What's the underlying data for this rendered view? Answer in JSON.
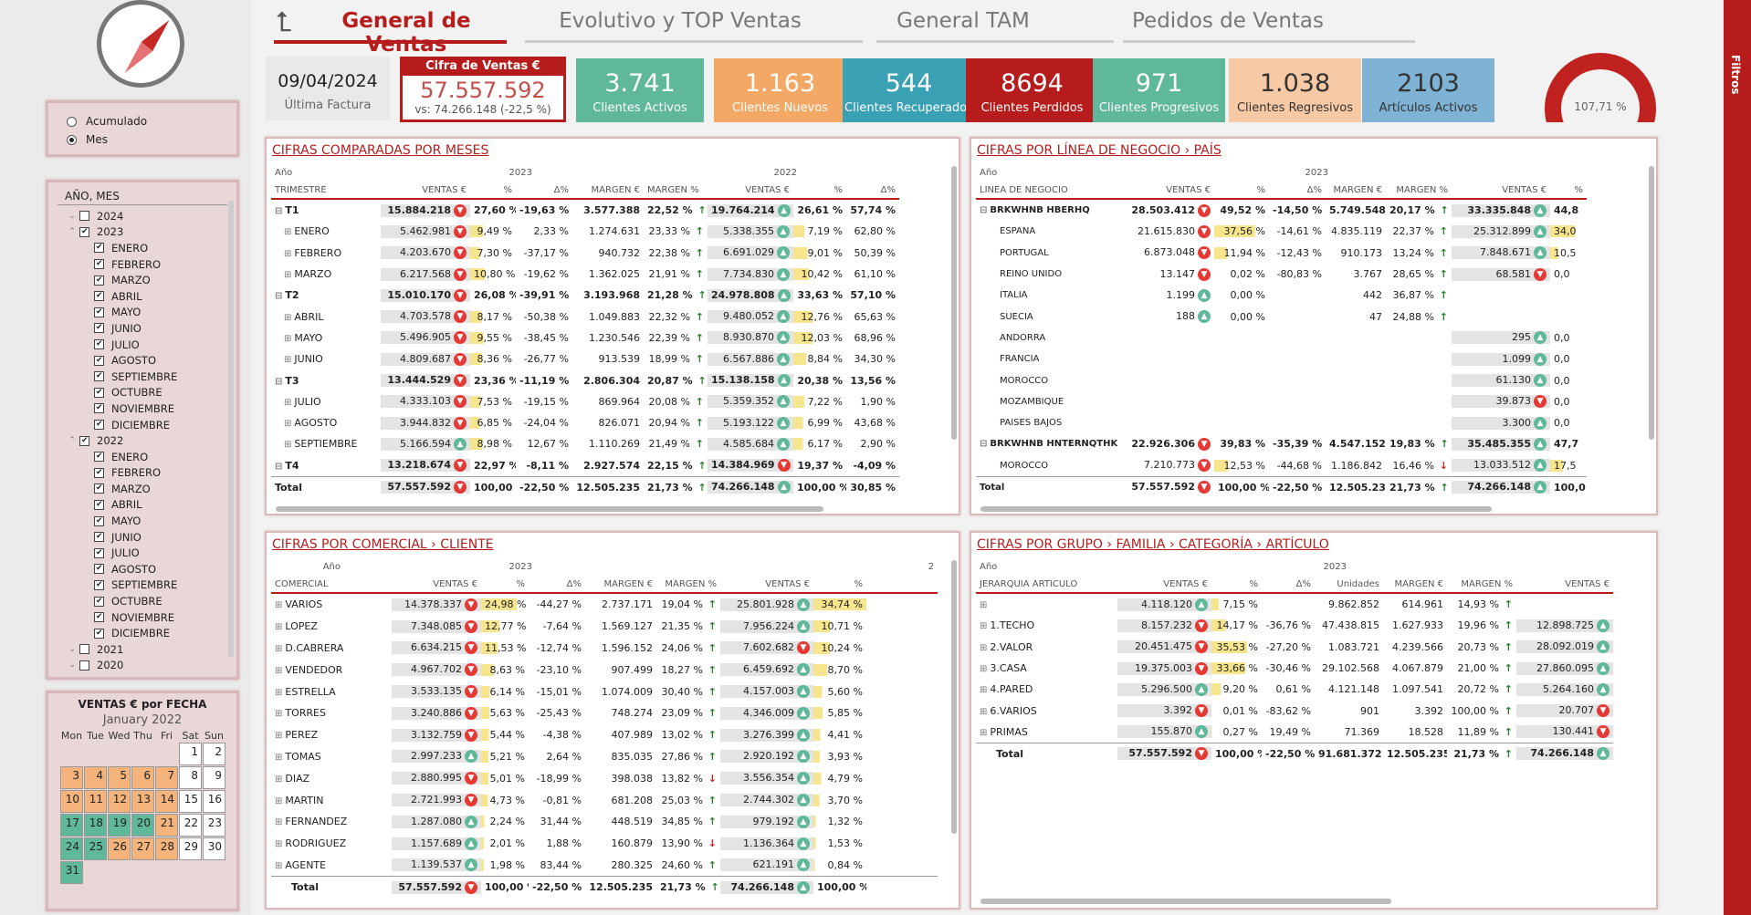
{
  "sidebar": {
    "mode_options": [
      {
        "label": "Acumulado",
        "selected": false
      },
      {
        "label": "Mes",
        "selected": true
      }
    ],
    "date_filter": {
      "header": "AÑO, MES",
      "items": [
        {
          "label": "2024",
          "level": 0,
          "checked": false,
          "expanded": false
        },
        {
          "label": "2023",
          "level": 0,
          "checked": true,
          "expanded": true
        },
        {
          "label": "ENERO",
          "level": 1,
          "checked": true
        },
        {
          "label": "FEBRERO",
          "level": 1,
          "checked": true
        },
        {
          "label": "MARZO",
          "level": 1,
          "checked": true
        },
        {
          "label": "ABRIL",
          "level": 1,
          "checked": true
        },
        {
          "label": "MAYO",
          "level": 1,
          "checked": true
        },
        {
          "label": "JUNIO",
          "level": 1,
          "checked": true
        },
        {
          "label": "JULIO",
          "level": 1,
          "checked": true
        },
        {
          "label": "AGOSTO",
          "level": 1,
          "checked": true
        },
        {
          "label": "SEPTIEMBRE",
          "level": 1,
          "checked": true
        },
        {
          "label": "OCTUBRE",
          "level": 1,
          "checked": true
        },
        {
          "label": "NOVIEMBRE",
          "level": 1,
          "checked": true
        },
        {
          "label": "DICIEMBRE",
          "level": 1,
          "checked": true
        },
        {
          "label": "2022",
          "level": 0,
          "checked": true,
          "expanded": true
        },
        {
          "label": "ENERO",
          "level": 1,
          "checked": true
        },
        {
          "label": "FEBRERO",
          "level": 1,
          "checked": true
        },
        {
          "label": "MARZO",
          "level": 1,
          "checked": true
        },
        {
          "label": "ABRIL",
          "level": 1,
          "checked": true
        },
        {
          "label": "MAYO",
          "level": 1,
          "checked": true
        },
        {
          "label": "JUNIO",
          "level": 1,
          "checked": true
        },
        {
          "label": "JULIO",
          "level": 1,
          "checked": true
        },
        {
          "label": "AGOSTO",
          "level": 1,
          "checked": true
        },
        {
          "label": "SEPTIEMBRE",
          "level": 1,
          "checked": true
        },
        {
          "label": "OCTUBRE",
          "level": 1,
          "checked": true
        },
        {
          "label": "NOVIEMBRE",
          "level": 1,
          "checked": true
        },
        {
          "label": "DICIEMBRE",
          "level": 1,
          "checked": true
        },
        {
          "label": "2021",
          "level": 0,
          "checked": false,
          "expanded": false
        },
        {
          "label": "2020",
          "level": 0,
          "checked": false,
          "expanded": false
        }
      ]
    },
    "calendar": {
      "title": "VENTAS € por FECHA",
      "month": "January 2022",
      "weekdays": [
        "Mon",
        "Tue",
        "Wed",
        "Thu",
        "Fri",
        "Sat",
        "Sun"
      ],
      "days": [
        {
          "d": "",
          "c": "e"
        },
        {
          "d": "",
          "c": "e"
        },
        {
          "d": "",
          "c": "e"
        },
        {
          "d": "",
          "c": "e"
        },
        {
          "d": "",
          "c": "e"
        },
        {
          "d": "1",
          "c": ""
        },
        {
          "d": "2",
          "c": ""
        },
        {
          "d": "3",
          "c": "o"
        },
        {
          "d": "4",
          "c": "o"
        },
        {
          "d": "5",
          "c": "o"
        },
        {
          "d": "6",
          "c": "o"
        },
        {
          "d": "7",
          "c": "o"
        },
        {
          "d": "8",
          "c": ""
        },
        {
          "d": "9",
          "c": ""
        },
        {
          "d": "10",
          "c": "o"
        },
        {
          "d": "11",
          "c": "o"
        },
        {
          "d": "12",
          "c": "o"
        },
        {
          "d": "13",
          "c": "o"
        },
        {
          "d": "14",
          "c": "o"
        },
        {
          "d": "15",
          "c": ""
        },
        {
          "d": "16",
          "c": ""
        },
        {
          "d": "17",
          "c": "g"
        },
        {
          "d": "18",
          "c": "g"
        },
        {
          "d": "19",
          "c": "g"
        },
        {
          "d": "20",
          "c": "g"
        },
        {
          "d": "21",
          "c": "o"
        },
        {
          "d": "22",
          "c": ""
        },
        {
          "d": "23",
          "c": ""
        },
        {
          "d": "24",
          "c": "g"
        },
        {
          "d": "25",
          "c": "g"
        },
        {
          "d": "26",
          "c": "o"
        },
        {
          "d": "27",
          "c": "o"
        },
        {
          "d": "28",
          "c": "o"
        },
        {
          "d": "29",
          "c": ""
        },
        {
          "d": "30",
          "c": ""
        },
        {
          "d": "31",
          "c": "g"
        }
      ]
    }
  },
  "tabs": [
    {
      "label": "General de Ventas",
      "active": true
    },
    {
      "label": "Evolutivo y TOP Ventas",
      "active": false
    },
    {
      "label": "General TAM",
      "active": false
    },
    {
      "label": "Pedidos de Ventas",
      "active": false
    }
  ],
  "kpis": {
    "date": {
      "value": "09/04/2024",
      "label": "Última Factura"
    },
    "ventas": {
      "title": "Cifra de Ventas €",
      "value": "57.557.592",
      "vs": "vs: 74.266.148 (-22,5 %)"
    },
    "cards": [
      {
        "value": "3.741",
        "label": "Clientes Activos",
        "color": "#5fb89a"
      },
      {
        "value": "1.163",
        "label": "Clientes Nuevos",
        "color": "#f3a965"
      },
      {
        "value": "544",
        "label": "Clientes Recuperados",
        "color": "#3aa1b5"
      },
      {
        "value": "8694",
        "label": "Clientes Perdidos",
        "color": "#b71c1c"
      },
      {
        "value": "971",
        "label": "Clientes Progresivos",
        "color": "#5fb89a"
      },
      {
        "value": "1.038",
        "label": "Clientes Regresivos",
        "color": "#f7c9a5",
        "textcolor": "#333"
      },
      {
        "value": "2103",
        "label": "Artículos Activos",
        "color": "#7fb3d5",
        "textcolor": "#333"
      }
    ],
    "gauge": {
      "value": "107,71 %"
    }
  },
  "filters_label": "Filtros",
  "t1": {
    "title": "CIFRAS COMPARADAS POR MESES",
    "h1": [
      "Año",
      "2023",
      "2022"
    ],
    "h2": [
      "TRIMESTRE",
      "VENTAS €",
      "%",
      "Δ%",
      "MARGEN €",
      "MARGEN %",
      "VENTAS €",
      "%",
      "Δ%"
    ],
    "rows": [
      [
        "T1",
        "15.884.218",
        "dn",
        "27,60 %",
        "-19,63 %",
        "3.577.388",
        "22,52 %",
        "up",
        "19.764.214",
        "up",
        "26,61 %",
        "57,74 %",
        "b",
        "27.6"
      ],
      [
        "ENERO",
        "5.462.981",
        "dn",
        "9,49 %",
        "2,33 %",
        "1.274.631",
        "23,33 %",
        "up",
        "5.338.355",
        "up",
        "7,19 %",
        "62,80 %",
        "",
        "9.5"
      ],
      [
        "FEBRERO",
        "4.203.670",
        "dn",
        "7,30 %",
        "-37,17 %",
        "940.732",
        "22,38 %",
        "up",
        "6.691.029",
        "up",
        "9,01 %",
        "50,39 %",
        "",
        "7.3"
      ],
      [
        "MARZO",
        "6.217.568",
        "dn",
        "10,80 %",
        "-19,62 %",
        "1.362.025",
        "21,91 %",
        "up",
        "7.734.830",
        "up",
        "10,42 %",
        "61,10 %",
        "",
        "10.8"
      ],
      [
        "T2",
        "15.010.170",
        "dn",
        "26,08 %",
        "-39,91 %",
        "3.193.968",
        "21,28 %",
        "up",
        "24.978.808",
        "up",
        "33,63 %",
        "57,10 %",
        "b",
        "26.1"
      ],
      [
        "ABRIL",
        "4.703.578",
        "dn",
        "8,17 %",
        "-50,38 %",
        "1.049.883",
        "22,32 %",
        "up",
        "9.480.052",
        "up",
        "12,76 %",
        "65,63 %",
        "",
        "8.2"
      ],
      [
        "MAYO",
        "5.496.905",
        "dn",
        "9,55 %",
        "-38,45 %",
        "1.230.546",
        "22,39 %",
        "up",
        "8.930.870",
        "up",
        "12,03 %",
        "68,96 %",
        "",
        "9.6"
      ],
      [
        "JUNIO",
        "4.809.687",
        "dn",
        "8,36 %",
        "-26,77 %",
        "913.539",
        "18,99 %",
        "up",
        "6.567.886",
        "up",
        "8,84 %",
        "34,30 %",
        "",
        "8.4"
      ],
      [
        "T3",
        "13.444.529",
        "dn",
        "23,36 %",
        "-11,19 %",
        "2.806.304",
        "20,87 %",
        "up",
        "15.138.158",
        "up",
        "20,38 %",
        "13,56 %",
        "b",
        "23.4"
      ],
      [
        "JULIO",
        "4.333.103",
        "dn",
        "7,53 %",
        "-19,15 %",
        "869.964",
        "20,08 %",
        "up",
        "5.359.352",
        "up",
        "7,22 %",
        "1,90 %",
        "",
        "7.5"
      ],
      [
        "AGOSTO",
        "3.944.832",
        "dn",
        "6,85 %",
        "-24,04 %",
        "826.071",
        "20,94 %",
        "up",
        "5.193.122",
        "up",
        "6,99 %",
        "43,68 %",
        "",
        "6.9"
      ],
      [
        "SEPTIEMBRE",
        "5.166.594",
        "up",
        "8,98 %",
        "12,67 %",
        "1.110.269",
        "21,49 %",
        "up",
        "4.585.684",
        "up",
        "6,17 %",
        "2,90 %",
        "",
        "9.0"
      ],
      [
        "T4",
        "13.218.674",
        "dn",
        "22,97 %",
        "-8,11 %",
        "2.927.574",
        "22,15 %",
        "up",
        "14.384.969",
        "dn",
        "19,37 %",
        "-4,09 %",
        "b",
        "23.0"
      ],
      [
        "Total",
        "57.557.592",
        "dn",
        "100,00 %",
        "-22,50 %",
        "12.505.235",
        "21,73 %",
        "up",
        "74.266.148",
        "up",
        "100,00 %",
        "30,85 %",
        "t",
        "0"
      ]
    ]
  },
  "t2": {
    "title": "CIFRAS POR LÍNEA DE NEGOCIO › PAÍS",
    "h1": [
      "Año",
      "2023"
    ],
    "h2": [
      "LÍNEA DE NEGOCIO",
      "VENTAS €",
      "%",
      "Δ%",
      "MARGEN €",
      "MARGEN %",
      "VENTAS €",
      "%"
    ],
    "rows": [
      [
        "BRKWHNB HBERHQ",
        "28.503.412",
        "dn",
        "49,52 %",
        "-14,50 %",
        "5.749.548",
        "20,17 %",
        "up",
        "33.335.848",
        "up",
        "44,8",
        "b"
      ],
      [
        "ESPAÑA",
        "21.615.830",
        "dn",
        "37,56 %",
        "-14,61 %",
        "4.835.119",
        "22,37 %",
        "up",
        "25.312.899",
        "up",
        "34,0",
        ""
      ],
      [
        "PORTUGAL",
        "6.873.048",
        "dn",
        "11,94 %",
        "-12,43 %",
        "910.173",
        "13,24 %",
        "up",
        "7.848.671",
        "up",
        "10,5",
        ""
      ],
      [
        "REINO UNIDO",
        "13.147",
        "dn",
        "0,02 %",
        "-80,83 %",
        "3.767",
        "28,65 %",
        "up",
        "68.581",
        "dn",
        "0,0",
        ""
      ],
      [
        "ITALIA",
        "1.199",
        "up",
        "0,00 %",
        "",
        "442",
        "36,87 %",
        "up",
        "",
        "",
        "",
        ""
      ],
      [
        "SUECIA",
        "188",
        "up",
        "0,00 %",
        "",
        "47",
        "24,88 %",
        "up",
        "",
        "",
        "",
        ""
      ],
      [
        "ANDORRA",
        "",
        "",
        "",
        "",
        "",
        "",
        "",
        "295",
        "up",
        "0,0",
        ""
      ],
      [
        "FRANCIA",
        "",
        "",
        "",
        "",
        "",
        "",
        "",
        "1.099",
        "up",
        "0,0",
        ""
      ],
      [
        "MOROCCO",
        "",
        "",
        "",
        "",
        "",
        "",
        "",
        "61.130",
        "up",
        "0,0",
        ""
      ],
      [
        "MOZAMBIQUE",
        "",
        "",
        "",
        "",
        "",
        "",
        "",
        "39.873",
        "dn",
        "0,0",
        ""
      ],
      [
        "PAÍSES BAJOS",
        "",
        "",
        "",
        "",
        "",
        "",
        "",
        "3.300",
        "up",
        "0,0",
        ""
      ],
      [
        "BRKWHNB HNTERNQTHKNQL",
        "22.926.306",
        "dn",
        "39,83 %",
        "-35,39 %",
        "4.547.152",
        "19,83 %",
        "up",
        "35.485.355",
        "up",
        "47,7",
        "b"
      ],
      [
        "MOROCCO",
        "7.210.773",
        "dn",
        "12,53 %",
        "-44,68 %",
        "1.186.842",
        "16,46 %",
        "dn",
        "13.033.512",
        "up",
        "17,5",
        ""
      ],
      [
        "Total",
        "57.557.592",
        "dn",
        "100,00 %",
        "-22,50 %",
        "12.505.235",
        "21,73 %",
        "up",
        "74.266.148",
        "up",
        "100,0",
        "t"
      ]
    ]
  },
  "t3": {
    "title": "CIFRAS POR COMERCIAL › CLIENTE",
    "h1": [
      "Año",
      "2023",
      "2"
    ],
    "h2": [
      "COMERCIAL",
      "VENTAS €",
      "%",
      "Δ%",
      "MARGEN €",
      "MARGEN %",
      "VENTAS €",
      "%"
    ],
    "rows": [
      [
        "VARIOS",
        "14.378.337",
        "dn",
        "24,98 %",
        "-44,27 %",
        "2.737.171",
        "19,04 %",
        "up",
        "25.801.928",
        "up",
        "34,74 %",
        ""
      ],
      [
        "LOPEZ",
        "7.348.085",
        "dn",
        "12,77 %",
        "-7,64 %",
        "1.569.127",
        "21,35 %",
        "up",
        "7.956.224",
        "up",
        "10,71 %",
        ""
      ],
      [
        "D.CABRERA",
        "6.634.215",
        "dn",
        "11,53 %",
        "-12,74 %",
        "1.596.152",
        "24,06 %",
        "up",
        "7.602.682",
        "dn",
        "10,24 %",
        ""
      ],
      [
        "VENDEDOR",
        "4.967.702",
        "dn",
        "8,63 %",
        "-23,10 %",
        "907.499",
        "18,27 %",
        "up",
        "6.459.692",
        "up",
        "8,70 %",
        ""
      ],
      [
        "ESTRELLA",
        "3.533.135",
        "dn",
        "6,14 %",
        "-15,01 %",
        "1.074.009",
        "30,40 %",
        "up",
        "4.157.003",
        "up",
        "5,60 %",
        ""
      ],
      [
        "TORRES",
        "3.240.886",
        "dn",
        "5,63 %",
        "-25,43 %",
        "748.274",
        "23,09 %",
        "up",
        "4.346.009",
        "up",
        "5,85 %",
        ""
      ],
      [
        "PEREZ",
        "3.132.759",
        "dn",
        "5,44 %",
        "-4,38 %",
        "407.989",
        "13,02 %",
        "up",
        "3.276.399",
        "up",
        "4,41 %",
        ""
      ],
      [
        "TOMAS",
        "2.997.233",
        "up",
        "5,21 %",
        "2,64 %",
        "835.035",
        "27,86 %",
        "up",
        "2.920.192",
        "up",
        "3,93 %",
        ""
      ],
      [
        "DIAZ",
        "2.880.995",
        "dn",
        "5,01 %",
        "-18,99 %",
        "398.038",
        "13,82 %",
        "dn",
        "3.556.354",
        "up",
        "4,79 %",
        ""
      ],
      [
        "MARTIN",
        "2.721.993",
        "dn",
        "4,73 %",
        "-0,81 %",
        "681.208",
        "25,03 %",
        "up",
        "2.744.302",
        "up",
        "3,70 %",
        ""
      ],
      [
        "FERNANDEZ",
        "1.287.080",
        "up",
        "2,24 %",
        "31,44 %",
        "448.519",
        "34,85 %",
        "up",
        "979.192",
        "up",
        "1,32 %",
        ""
      ],
      [
        "RODRIGUEZ",
        "1.157.689",
        "up",
        "2,01 %",
        "1,88 %",
        "160.879",
        "13,90 %",
        "dn",
        "1.136.364",
        "up",
        "1,53 %",
        ""
      ],
      [
        "AGENTE",
        "1.139.537",
        "up",
        "1,98 %",
        "83,44 %",
        "280.325",
        "24,60 %",
        "up",
        "621.191",
        "up",
        "0,84 %",
        ""
      ],
      [
        "Total",
        "57.557.592",
        "dn",
        "100,00 %",
        "-22,50 %",
        "12.505.235",
        "21,73 %",
        "up",
        "74.266.148",
        "up",
        "100,00 %",
        "t"
      ]
    ]
  },
  "t4": {
    "title": "CIFRAS POR GRUPO › FAMILIA › CATEGORÍA › ARTÍCULO",
    "h1": [
      "Año",
      "2023"
    ],
    "h2": [
      "JERARQUÍA ARTÍCULO",
      "VENTAS €",
      "%",
      "Δ%",
      "Unidades",
      "MARGEN €",
      "MARGEN %",
      "VENTAS €"
    ],
    "rows": [
      [
        "",
        "4.118.120",
        "up",
        "7,15 %",
        "",
        "9.862.852",
        "614.961",
        "14,93 %",
        "up",
        "",
        ""
      ],
      [
        "1.TECHO",
        "8.157.232",
        "dn",
        "14,17 %",
        "-36,76 %",
        "47.438.815",
        "1.627.933",
        "19,96 %",
        "up",
        "12.898.725",
        "up"
      ],
      [
        "2.VALOR",
        "20.451.475",
        "dn",
        "35,53 %",
        "-27,20 %",
        "1.083.721",
        "4.239.566",
        "20,73 %",
        "up",
        "28.092.019",
        "up"
      ],
      [
        "3.CASA",
        "19.375.003",
        "dn",
        "33,66 %",
        "-30,46 %",
        "29.102.568",
        "4.067.879",
        "21,00 %",
        "up",
        "27.860.095",
        "up"
      ],
      [
        "4.PARED",
        "5.296.500",
        "up",
        "9,20 %",
        "0,61 %",
        "4.121.148",
        "1.097.541",
        "20,72 %",
        "up",
        "5.264.160",
        "up"
      ],
      [
        "6.VARIOS",
        "3.392",
        "dn",
        "0,01 %",
        "-83,62 %",
        "901",
        "3.392",
        "100,00 %",
        "up",
        "20.707",
        "dn"
      ],
      [
        "PRIMAS",
        "155.870",
        "up",
        "0,27 %",
        "19,49 %",
        "71.369",
        "18.528",
        "11,89 %",
        "up",
        "130.441",
        "dn"
      ],
      [
        "Total",
        "57.557.592",
        "dn",
        "100,00 %",
        "-22,50 %",
        "91.681.372",
        "12.505.235",
        "21,73 %",
        "up",
        "74.266.148",
        "up"
      ]
    ]
  }
}
